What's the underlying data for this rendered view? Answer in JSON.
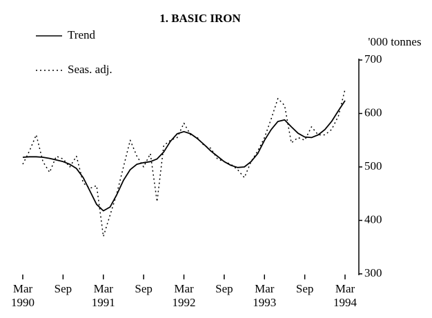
{
  "chart_data": {
    "type": "line",
    "title": "1. BASIC IRON",
    "y_axis_label": "'000 tonnes",
    "y_axis_side": "right",
    "legend": "top-left",
    "categories": [
      "Mar 1990",
      null,
      null,
      null,
      null,
      null,
      "Sep",
      null,
      null,
      null,
      null,
      null,
      "Mar 1991",
      null,
      null,
      null,
      null,
      null,
      "Sep",
      null,
      null,
      null,
      null,
      null,
      "Mar 1992",
      null,
      null,
      null,
      null,
      null,
      "Sep",
      null,
      null,
      null,
      null,
      null,
      "Mar 1993",
      null,
      null,
      null,
      null,
      null,
      "Sep",
      null,
      null,
      null,
      null,
      null,
      "Mar 1994"
    ],
    "series": [
      {
        "name": "Trend",
        "color": "#000000",
        "dash": "solid",
        "values": [
          518,
          519,
          519,
          518,
          516,
          513,
          510,
          505,
          497,
          480,
          455,
          430,
          418,
          425,
          448,
          475,
          495,
          505,
          508,
          510,
          515,
          528,
          548,
          562,
          566,
          562,
          553,
          542,
          530,
          520,
          510,
          503,
          499,
          500,
          510,
          525,
          550,
          570,
          585,
          588,
          575,
          563,
          556,
          555,
          560,
          570,
          585,
          605,
          624
        ]
      },
      {
        "name": "Seas. adj.",
        "color": "#000000",
        "dash": "dotted",
        "values": [
          505,
          530,
          560,
          510,
          490,
          520,
          515,
          500,
          520,
          470,
          460,
          465,
          370,
          410,
          450,
          500,
          550,
          520,
          500,
          525,
          435,
          540,
          550,
          555,
          582,
          560,
          555,
          540,
          535,
          515,
          510,
          505,
          495,
          480,
          510,
          530,
          555,
          590,
          628,
          615,
          545,
          555,
          550,
          575,
          560,
          560,
          570,
          595,
          645
        ]
      }
    ],
    "ylim": [
      300,
      700
    ],
    "yticks": [
      300,
      400,
      500,
      600,
      700
    ],
    "grid": false
  }
}
